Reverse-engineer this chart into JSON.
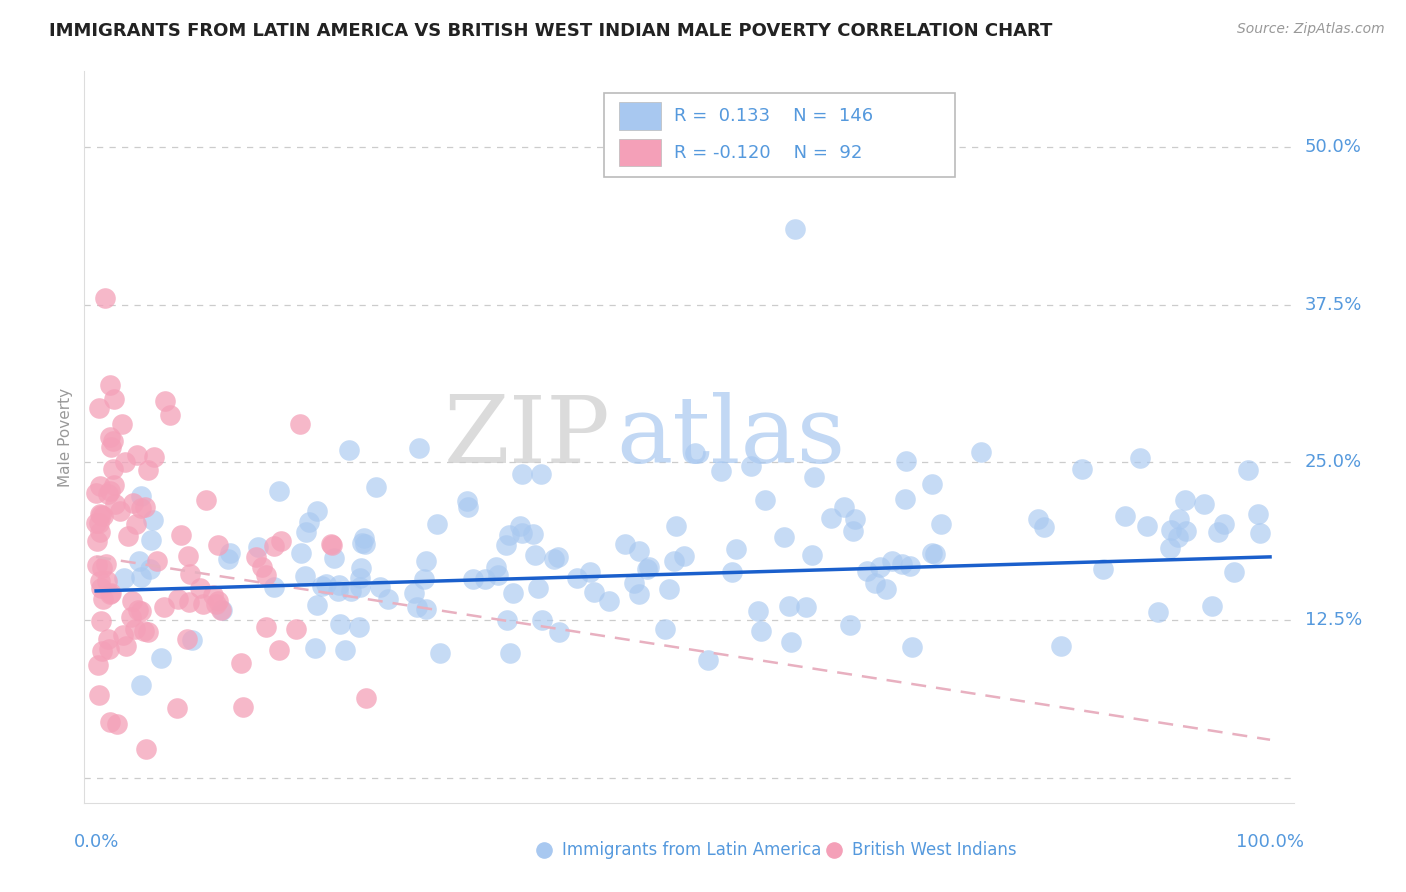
{
  "title": "IMMIGRANTS FROM LATIN AMERICA VS BRITISH WEST INDIAN MALE POVERTY CORRELATION CHART",
  "source_text": "Source: ZipAtlas.com",
  "ylabel": "Male Poverty",
  "ytick_vals": [
    0.0,
    0.125,
    0.25,
    0.375,
    0.5
  ],
  "ytick_labels": [
    "",
    "12.5%",
    "25.0%",
    "37.5%",
    "50.0%"
  ],
  "xtick_labels_show": [
    "0.0%",
    "100.0%"
  ],
  "xlim": [
    -0.01,
    1.02
  ],
  "ylim": [
    -0.02,
    0.56
  ],
  "blue_color": "#a8c8f0",
  "pink_color": "#f4a0b8",
  "blue_line_color": "#1a5fcc",
  "pink_line_color": "#e8b0c0",
  "watermark_zip": "ZIP",
  "watermark_atlas": "atlas",
  "legend_R_blue": "0.133",
  "legend_N_blue": "146",
  "legend_R_pink": "-0.120",
  "legend_N_pink": "92",
  "grid_color": "#cccccc",
  "background_color": "#ffffff",
  "title_fontsize": 13,
  "tick_color": "#5599dd",
  "blue_trend_x": [
    0.0,
    1.0
  ],
  "blue_trend_y": [
    0.148,
    0.175
  ],
  "pink_trend_x": [
    0.0,
    1.0
  ],
  "pink_trend_y": [
    0.175,
    0.03
  ]
}
